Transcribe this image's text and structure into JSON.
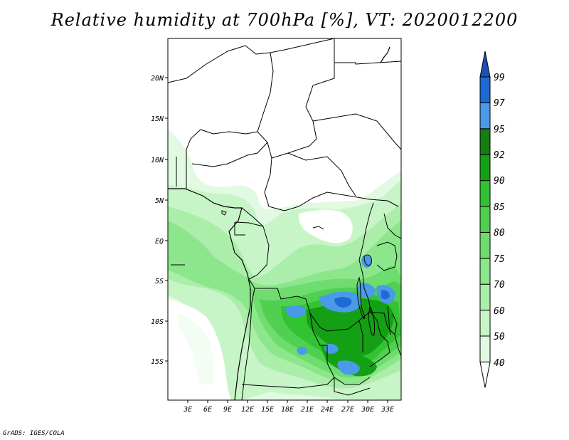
{
  "title": "Relative humidity at 700hPa [%], VT: 2020012200",
  "credit": "GrADS: IGES/COLA",
  "map": {
    "lon_range": [
      0,
      35
    ],
    "lat_range": [
      -19.5,
      24
    ],
    "lat_ticks": [
      "20N",
      "15N",
      "10N",
      "5N",
      "EQ",
      "5S",
      "10S",
      "15S"
    ],
    "lon_ticks": [
      "3E",
      "6E",
      "9E",
      "12E",
      "15E",
      "18E",
      "21E",
      "24E",
      "27E",
      "30E",
      "33E"
    ]
  },
  "colorbar": {
    "levels": [
      "40",
      "50",
      "60",
      "70",
      "75",
      "80",
      "85",
      "90",
      "92",
      "95",
      "97",
      "99"
    ],
    "colors": [
      "#ffffff",
      "#e1fae1",
      "#c8f5c8",
      "#aaeeaa",
      "#8ce68c",
      "#6edc6e",
      "#50d050",
      "#32c232",
      "#14a014",
      "#147d14",
      "#4a9ae8",
      "#1e6ad4",
      "#1e50b4"
    ]
  }
}
